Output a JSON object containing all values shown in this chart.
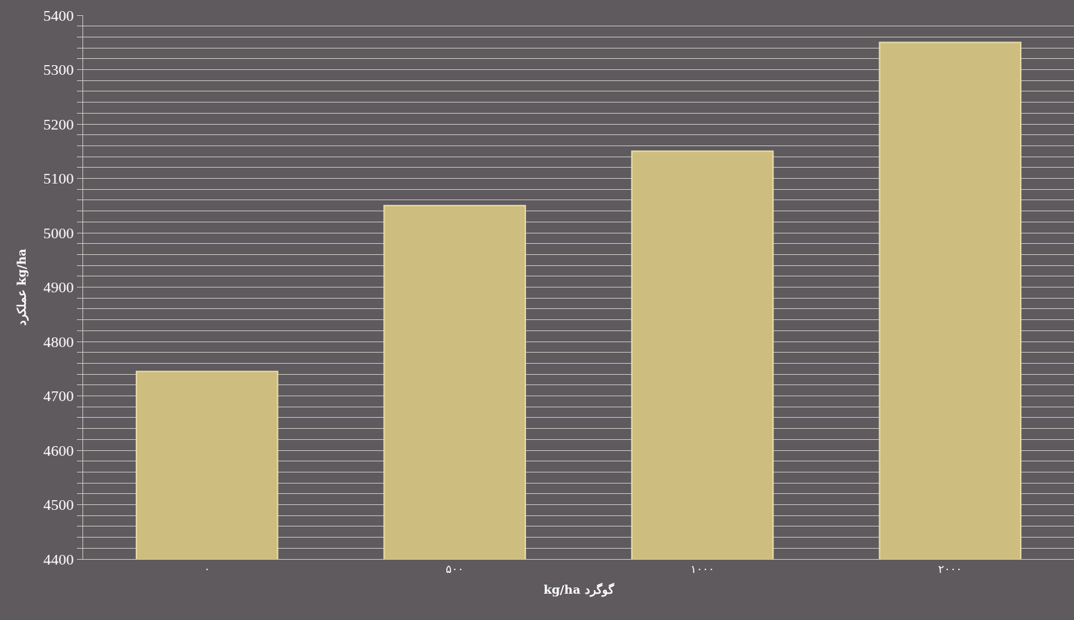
{
  "chart_data": {
    "type": "bar",
    "xlabel": "kg/ha گوگرد",
    "ylabel": "عملکرد kg/ha",
    "categories": [
      "۰",
      "۵۰۰",
      "۱۰۰۰",
      "۲۰۰۰"
    ],
    "values": [
      4745,
      5050,
      5150,
      5350
    ],
    "color": "#cdbd7e",
    "ylim": [
      4400,
      5400
    ],
    "yticks": [
      4400,
      {
        "value": 4420,
        "label": null
      },
      {
        "value": 4440,
        "label": null
      },
      {
        "value": 4460,
        "label": null
      },
      {
        "value": 4480,
        "label": null
      },
      4500,
      {
        "value": 4520,
        "label": null
      },
      {
        "value": 4540,
        "label": null
      },
      {
        "value": 4560,
        "label": null
      },
      {
        "value": 4580,
        "label": null
      },
      4600,
      {
        "value": 4620,
        "label": null
      },
      {
        "value": 4640,
        "label": null
      },
      {
        "value": 4660,
        "label": null
      },
      {
        "value": 4680,
        "label": null
      },
      4700,
      {
        "value": 4720,
        "label": null
      },
      {
        "value": 4740,
        "label": null
      },
      {
        "value": 4760,
        "label": null
      },
      {
        "value": 4780,
        "label": null
      },
      4800,
      {
        "value": 4820,
        "label": null
      },
      {
        "value": 4840,
        "label": null
      },
      {
        "value": 4860,
        "label": null
      },
      {
        "value": 4880,
        "label": null
      },
      4900,
      {
        "value": 4920,
        "label": null
      },
      {
        "value": 4940,
        "label": null
      },
      {
        "value": 4960,
        "label": null
      },
      {
        "value": 4980,
        "label": null
      },
      5000,
      {
        "value": 5020,
        "label": null
      },
      {
        "value": 5040,
        "label": null
      },
      {
        "value": 5060,
        "label": null
      },
      {
        "value": 5080,
        "label": null
      },
      5100,
      {
        "value": 5120,
        "label": null
      },
      {
        "value": 5140,
        "label": null
      },
      {
        "value": 5160,
        "label": null
      },
      {
        "value": 5180,
        "label": null
      },
      5200,
      {
        "value": 5220,
        "label": null
      },
      {
        "value": 5240,
        "label": null
      },
      {
        "value": 5260,
        "label": null
      },
      {
        "value": 5280,
        "label": null
      },
      5300,
      {
        "value": 5320,
        "label": null
      },
      {
        "value": 5340,
        "label": null
      },
      {
        "value": 5360,
        "label": null
      },
      {
        "value": 5380,
        "label": null
      },
      5400
    ],
    "grid": "y"
  }
}
